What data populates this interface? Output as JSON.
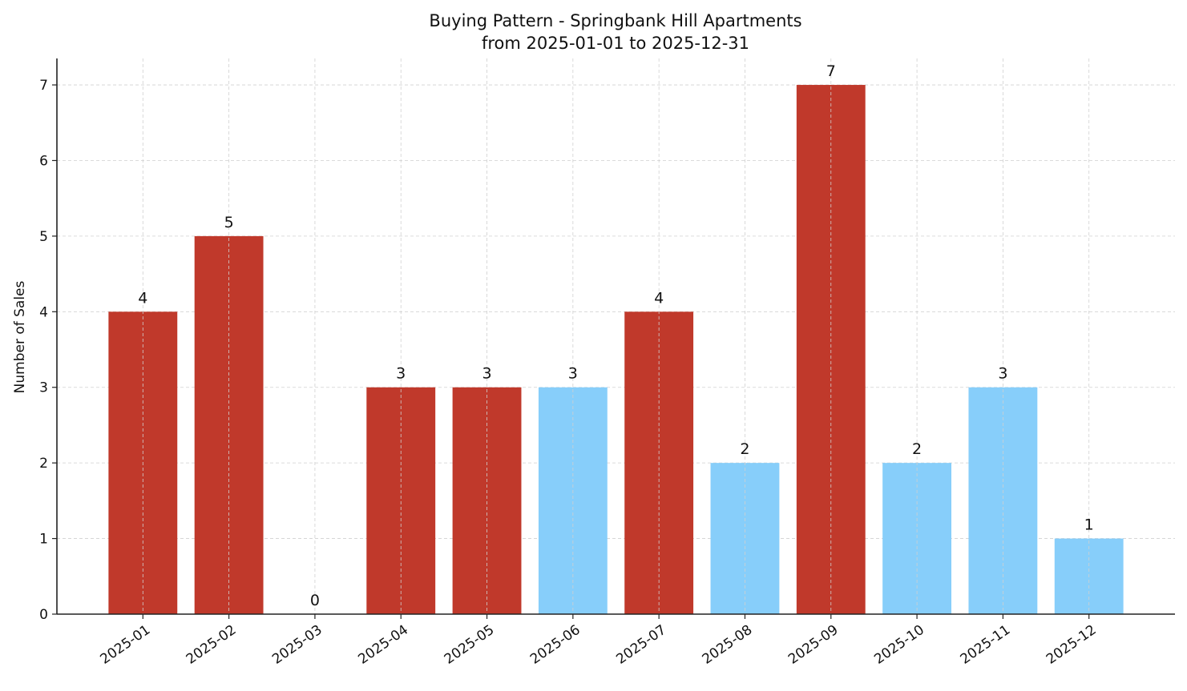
{
  "chart_data": {
    "type": "bar",
    "title": "Buying Pattern - Springbank Hill Apartments",
    "subtitle": "from 2025-01-01 to 2025-12-31",
    "xlabel": "",
    "ylabel": "Number of Sales",
    "categories": [
      "2025-01",
      "2025-02",
      "2025-03",
      "2025-04",
      "2025-05",
      "2025-06",
      "2025-07",
      "2025-08",
      "2025-09",
      "2025-10",
      "2025-11",
      "2025-12"
    ],
    "values": [
      4,
      5,
      0,
      3,
      3,
      3,
      4,
      2,
      7,
      2,
      3,
      1
    ],
    "bar_colors": [
      "#c0392b",
      "#c0392b",
      "#c0392b",
      "#c0392b",
      "#c0392b",
      "#87cefa",
      "#c0392b",
      "#87cefa",
      "#c0392b",
      "#87cefa",
      "#87cefa",
      "#87cefa"
    ],
    "data_labels": [
      "4",
      "5",
      "0",
      "3",
      "3",
      "3",
      "4",
      "2",
      "7",
      "2",
      "3",
      "1"
    ],
    "yticks": [
      0,
      1,
      2,
      3,
      4,
      5,
      6,
      7
    ],
    "ylim": [
      0,
      7.35
    ],
    "grid": true,
    "legend": "none"
  }
}
